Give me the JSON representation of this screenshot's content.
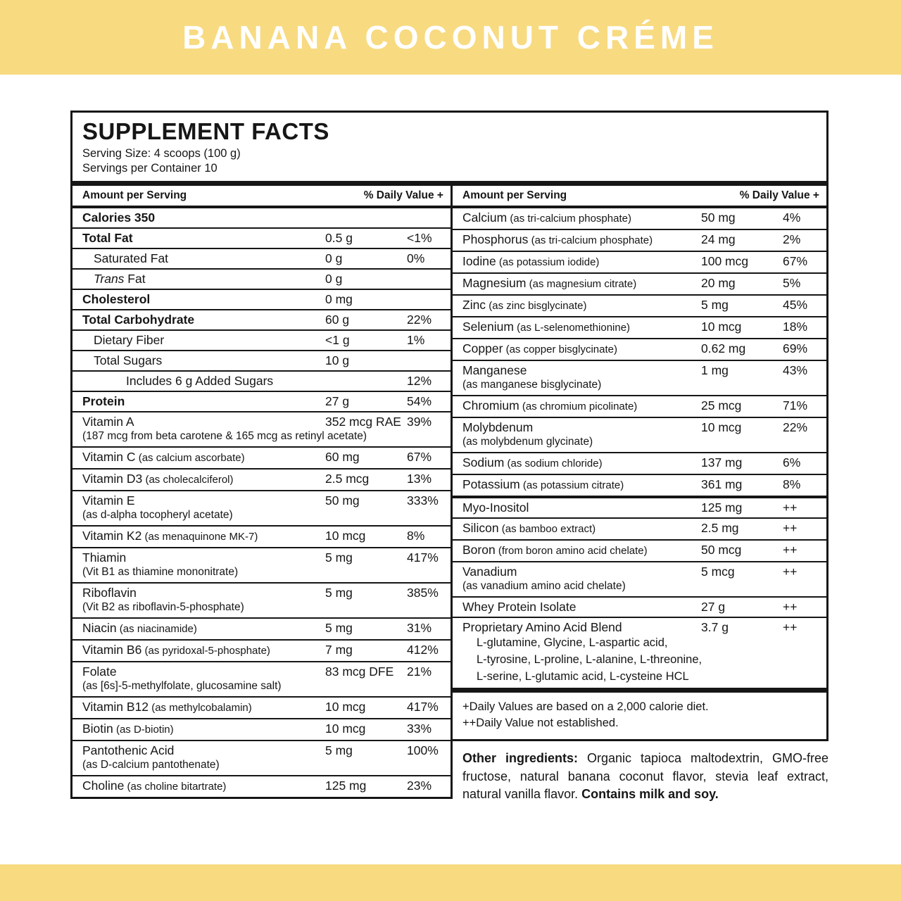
{
  "colors": {
    "banner_bg": "#F8DA80",
    "banner_text": "#FFFFFF",
    "ink": "#161616",
    "page_bg": "#FFFFFF"
  },
  "banner": {
    "title": "BANANA COCONUT CRÉME"
  },
  "panel": {
    "title": "SUPPLEMENT FACTS",
    "serving_size": "Serving Size: 4 scoops (100 g)",
    "servings_per_container": "Servings per Container 10",
    "col_header_amount": "Amount per Serving",
    "col_header_dv": "% Daily Value +"
  },
  "left_rows": [
    {
      "label": "Calories 350",
      "bold": true
    },
    {
      "label": "Total Fat",
      "bold": true,
      "amount": "0.5 g",
      "dv": "<1%"
    },
    {
      "label": "Saturated Fat",
      "indent": 1,
      "amount": "0 g",
      "dv": "0%"
    },
    {
      "italic_label": "Trans",
      "label": " Fat",
      "indent": 1,
      "amount": "0 g"
    },
    {
      "label": "Cholesterol",
      "bold": true,
      "amount": "0 mg"
    },
    {
      "label": "Total Carbohydrate",
      "bold": true,
      "amount": "60 g",
      "dv": "22%"
    },
    {
      "label": "Dietary Fiber",
      "indent": 1,
      "amount": "<1 g",
      "dv": "1%"
    },
    {
      "label": "Total Sugars",
      "indent": 1,
      "amount": "10 g"
    },
    {
      "label": "Includes 6 g Added Sugars",
      "indent": 2,
      "dv": "12%"
    },
    {
      "label": "Protein",
      "bold": true,
      "amount": "27 g",
      "dv": "54%"
    },
    {
      "label": "Vitamin A",
      "amount": "352 mcg RAE",
      "dv": "39%",
      "sub": "(187 mcg from beta carotene & 165 mcg as retinyl acetate)"
    },
    {
      "label": "Vitamin C",
      "paren": "(as calcium ascorbate)",
      "amount": "60 mg",
      "dv": "67%"
    },
    {
      "label": "Vitamin D3",
      "paren": "(as cholecalciferol)",
      "amount": "2.5 mcg",
      "dv": "13%"
    },
    {
      "label": "Vitamin E",
      "amount": "50 mg",
      "dv": "333%",
      "sub": "(as d-alpha tocopheryl acetate)"
    },
    {
      "label": "Vitamin K2",
      "paren": "(as menaquinone MK-7)",
      "amount": "10 mcg",
      "dv": "8%"
    },
    {
      "label": "Thiamin",
      "amount": "5 mg",
      "dv": "417%",
      "sub": "(Vit B1 as thiamine mononitrate)"
    },
    {
      "label": "Riboflavin",
      "amount": "5 mg",
      "dv": "385%",
      "sub": "(Vit B2 as riboflavin-5-phosphate)"
    },
    {
      "label": "Niacin",
      "paren": "(as niacinamide)",
      "amount": "5 mg",
      "dv": "31%"
    },
    {
      "label": "Vitamin B6",
      "paren": "(as pyridoxal-5-phosphate)",
      "amount": "7 mg",
      "dv": "412%"
    },
    {
      "label": "Folate",
      "amount": "83 mcg DFE",
      "dv": "21%",
      "sub": "(as [6s]-5-methylfolate, glucosamine salt)"
    },
    {
      "label": "Vitamin B12",
      "paren": "(as methylcobalamin)",
      "amount": "10 mcg",
      "dv": "417%"
    },
    {
      "label": "Biotin",
      "paren": "(as D-biotin)",
      "amount": "10 mcg",
      "dv": "33%"
    },
    {
      "label": "Pantothenic Acid",
      "amount": "5 mg",
      "dv": "100%",
      "sub": "(as D-calcium pantothenate)"
    },
    {
      "label": "Choline",
      "paren": "(as choline bitartrate)",
      "amount": "125 mg",
      "dv": "23%"
    }
  ],
  "right_rows": [
    {
      "label": "Calcium",
      "paren": "(as tri-calcium phosphate)",
      "amount": "50 mg",
      "dv": "4%"
    },
    {
      "label": "Phosphorus",
      "paren": "(as tri-calcium phosphate)",
      "amount": "24 mg",
      "dv": "2%"
    },
    {
      "label": "Iodine",
      "paren": "(as potassium iodide)",
      "amount": "100 mcg",
      "dv": "67%"
    },
    {
      "label": "Magnesium",
      "paren": "(as magnesium citrate)",
      "amount": "20 mg",
      "dv": "5%"
    },
    {
      "label": "Zinc",
      "paren": "(as zinc bisglycinate)",
      "amount": "5 mg",
      "dv": "45%"
    },
    {
      "label": "Selenium",
      "paren": "(as L-selenomethionine)",
      "amount": "10 mcg",
      "dv": "18%"
    },
    {
      "label": "Copper",
      "paren": "(as copper bisglycinate)",
      "amount": "0.62 mg",
      "dv": "69%"
    },
    {
      "label": "Manganese",
      "amount": "1 mg",
      "dv": "43%",
      "sub": "(as manganese bisglycinate)"
    },
    {
      "label": "Chromium",
      "paren": "(as chromium picolinate)",
      "amount": "25 mcg",
      "dv": "71%"
    },
    {
      "label": "Molybdenum",
      "amount": "10 mcg",
      "dv": "22%",
      "sub": "(as molybdenum glycinate)"
    },
    {
      "label": "Sodium",
      "paren": "(as sodium chloride)",
      "amount": "137 mg",
      "dv": "6%"
    },
    {
      "label": "Potassium",
      "paren": "(as potassium citrate)",
      "amount": "361 mg",
      "dv": "8%",
      "thick": true
    },
    {
      "label": "Myo-Inositol",
      "amount": "125 mg",
      "dv": "++"
    },
    {
      "label": "Silicon",
      "paren": "(as bamboo extract)",
      "amount": "2.5 mg",
      "dv": "++"
    },
    {
      "label": "Boron",
      "paren": "(from boron amino acid chelate)",
      "amount": "50 mcg",
      "dv": "++"
    },
    {
      "label": "Vanadium",
      "amount": "5 mcg",
      "dv": "++",
      "sub": "(as vanadium amino acid chelate)"
    },
    {
      "label": "Whey Protein Isolate",
      "amount": "27 g",
      "dv": "++"
    },
    {
      "label": "Proprietary Amino Acid Blend",
      "amount": "3.7 g",
      "dv": "++",
      "subs": [
        "L-glutamine, Glycine, L-aspartic acid,",
        "L-tyrosine, L-proline, L-alanine, L-threonine,",
        "L-serine, L-glutamic acid, L-cysteine HCL"
      ]
    }
  ],
  "footnotes": {
    "line1": "+Daily Values are based on a 2,000 calorie diet.",
    "line2": "++Daily Value not established."
  },
  "other_ingredients": {
    "label": "Other ingredients:",
    "text": " Organic tapioca maltodextrin, GMO-free fructose, natural banana coconut flavor, stevia leaf extract, natural vanilla flavor. ",
    "allergen": "Contains milk and soy."
  }
}
